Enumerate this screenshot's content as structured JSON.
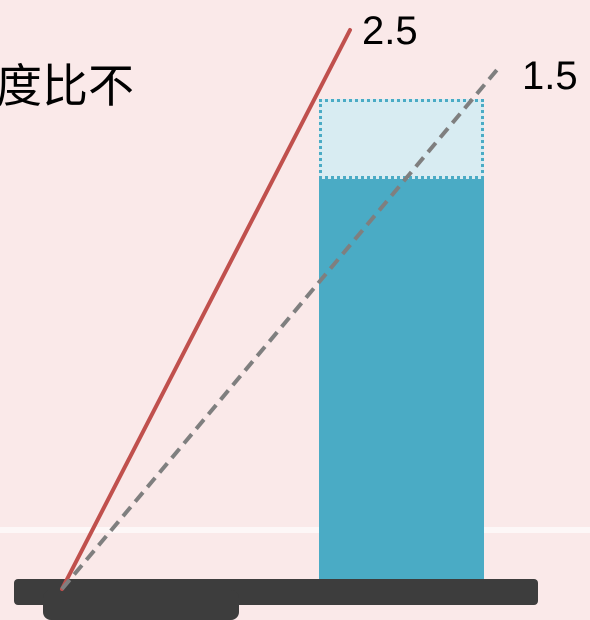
{
  "title_fragment": "度比不",
  "ray_labels": {
    "red": "2.5",
    "gray": "1.5"
  },
  "colors": {
    "background": "#fae9e9",
    "bar_fill": "#4aabc5",
    "bar_extension_fill": "#d8ecf2",
    "red_ray": "#c0504d",
    "gray_ray": "#7f7f7f",
    "base": "#3d3d3d"
  }
}
